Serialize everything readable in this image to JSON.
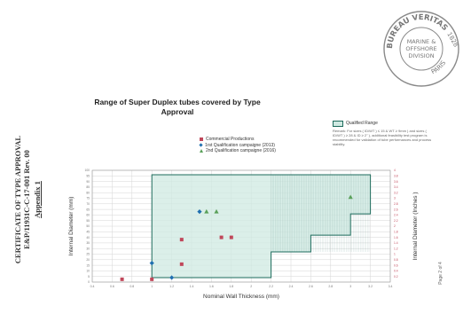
{
  "certificate": {
    "line1": "CERTIFICATE OF TYPE APPROVAL",
    "line2": "E&P/11931C-C-17-001 Rev. 00",
    "appendix": "Appendix 1"
  },
  "page_number": "Page 2 of 4",
  "stamp": {
    "outer": "BUREAU VERITAS",
    "year": "1828",
    "city": "PARIS",
    "inner1": "MARINE &",
    "inner2": "OFFSHORE",
    "inner3": "DIVISION"
  },
  "legend": {
    "commercial": "Commercial Productions",
    "first": "1rst Qualification campaigne (2013)",
    "second": "2nd Qualification campaigne (2016)"
  },
  "qualified_range": {
    "label": "Qualified Range",
    "remark": "Remark: For sizes ( ID/WT ) ≤ 15 & WT ≥ 9mm ) and sizes ( ID/WT ) ≥ 28 & ID ≥ 2\" ), additional feasibility test program is recommended for validation of tube performances and process stability."
  },
  "colors": {
    "commercial": "#c0475a",
    "first": "#1f6fb0",
    "second": "#5aa05a",
    "range_fill": "#cfe9e2",
    "range_edge": "#1d6b5c",
    "grid": "#d6d6d6",
    "inch_axis": "#c0475a"
  },
  "chart_data": {
    "type": "scatter",
    "title": "Range of Super Duplex tubes covered by Type Approval",
    "xlabel": "Nominal Wall Thickness (mm)",
    "ylabel": "Internal Diameter (mm)",
    "ylabel_right": "Internal Diameter (Inches )",
    "xlim": [
      0.4,
      3.4
    ],
    "ylim": [
      0,
      100
    ],
    "y2lim": [
      0,
      4
    ],
    "x_ticks": [
      "0.4",
      "0.6",
      "0.8",
      "1",
      "1.2",
      "1.4",
      "1.6",
      "1.8",
      "2",
      "2.2",
      "2.4",
      "2.6",
      "2.8",
      "3",
      "3.2",
      "3.4"
    ],
    "y_ticks": [
      "0",
      "5",
      "10",
      "15",
      "20",
      "25",
      "30",
      "35",
      "40",
      "45",
      "50",
      "55",
      "60",
      "65",
      "70",
      "75",
      "80",
      "85",
      "90",
      "95",
      "100"
    ],
    "y2_ticks": [
      "0.2",
      "0.4",
      "0.6",
      "0.8",
      "1",
      "1.2",
      "1.4",
      "1.6",
      "1.8",
      "2",
      "2.2",
      "2.4",
      "2.6",
      "2.8",
      "3",
      "3.2",
      "3.4",
      "3.6",
      "3.8",
      "4"
    ],
    "grid": true,
    "legend_position": "top-right",
    "qualified_range_polygon": [
      [
        1,
        4
      ],
      [
        1,
        96
      ],
      [
        3.2,
        96
      ],
      [
        3.2,
        61
      ],
      [
        3,
        61
      ],
      [
        3,
        42
      ],
      [
        2.6,
        42
      ],
      [
        2.6,
        27
      ],
      [
        2.2,
        27
      ],
      [
        2.2,
        4
      ]
    ],
    "series": [
      {
        "name": "Commercial Productions",
        "marker": "square",
        "points": [
          [
            0.7,
            2.5
          ],
          [
            1,
            2.5
          ],
          [
            1.3,
            16
          ],
          [
            1.3,
            38
          ],
          [
            1.7,
            40
          ],
          [
            1.8,
            40
          ]
        ]
      },
      {
        "name": "1rst Qualification campaigne (2013)",
        "marker": "diamond",
        "points": [
          [
            1,
            17
          ],
          [
            1.2,
            4
          ],
          [
            1.48,
            63
          ]
        ]
      },
      {
        "name": "2nd Qualification campaigne (2016)",
        "marker": "triangle",
        "points": [
          [
            1.55,
            63
          ],
          [
            1.65,
            63
          ],
          [
            3,
            76
          ]
        ]
      }
    ]
  }
}
